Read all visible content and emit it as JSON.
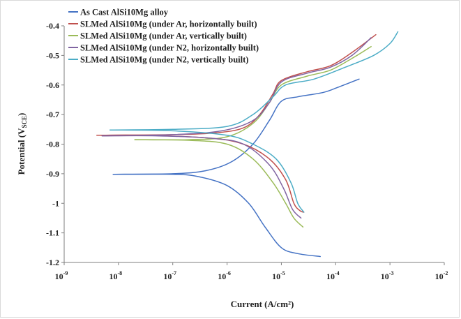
{
  "chart_data": {
    "type": "line",
    "title": "",
    "xlabel": "Current (A/cm²)",
    "ylabel": "Potential (VSCE)",
    "ylabel_main": "Potential (V",
    "ylabel_sub": "SCE",
    "ylabel_close": ")",
    "x_scale": "log",
    "xlim": [
      1e-09,
      0.01
    ],
    "ylim": [
      -1.2,
      -0.4
    ],
    "x_ticks": [
      {
        "base": "10",
        "exp": "-9",
        "value": 1e-09
      },
      {
        "base": "10",
        "exp": "-8",
        "value": 1e-08
      },
      {
        "base": "10",
        "exp": "-7",
        "value": 1e-07
      },
      {
        "base": "10",
        "exp": "-6",
        "value": 1e-06
      },
      {
        "base": "10",
        "exp": "-5",
        "value": 1e-05
      },
      {
        "base": "10",
        "exp": "-4",
        "value": 0.0001
      },
      {
        "base": "10",
        "exp": "-3",
        "value": 0.001
      },
      {
        "base": "10",
        "exp": "-2",
        "value": 0.01
      }
    ],
    "y_ticks": [
      {
        "label": "-0.4",
        "value": -0.4
      },
      {
        "label": "-0.5",
        "value": -0.5
      },
      {
        "label": "-0.6",
        "value": -0.6
      },
      {
        "label": "-0.7",
        "value": -0.7
      },
      {
        "label": "-0.8",
        "value": -0.8
      },
      {
        "label": "-0.9",
        "value": -0.9
      },
      {
        "label": "-1",
        "value": -1.0
      },
      {
        "label": "-1.1",
        "value": -1.1
      },
      {
        "label": "-1.2",
        "value": -1.2
      }
    ],
    "grid": false,
    "legend_position": "top-left",
    "series": [
      {
        "name": "As Cast AlSi10Mg alloy",
        "color": "#4472c4",
        "cathodic": [
          [
            8e-09,
            -0.902
          ],
          [
            1e-07,
            -0.902
          ],
          [
            3e-07,
            -0.91
          ],
          [
            1e-06,
            -0.94
          ],
          [
            2.5e-06,
            -1.0
          ],
          [
            5e-06,
            -1.08
          ],
          [
            1e-05,
            -1.15
          ],
          [
            2e-05,
            -1.17
          ],
          [
            5.2e-05,
            -1.18
          ]
        ],
        "anodic": [
          [
            8e-09,
            -0.902
          ],
          [
            1e-07,
            -0.9
          ],
          [
            4e-07,
            -0.89
          ],
          [
            1.2e-06,
            -0.86
          ],
          [
            3e-06,
            -0.8
          ],
          [
            6e-06,
            -0.72
          ],
          [
            1e-05,
            -0.655
          ],
          [
            2e-05,
            -0.64
          ],
          [
            6e-05,
            -0.625
          ],
          [
            0.00012,
            -0.605
          ],
          [
            0.00027,
            -0.58
          ]
        ]
      },
      {
        "name": "SLMed AlSi10Mg (under Ar, horizontally built)",
        "color": "#c0504d",
        "cathodic": [
          [
            4e-09,
            -0.77
          ],
          [
            3e-08,
            -0.77
          ],
          [
            5e-07,
            -0.78
          ],
          [
            2e-06,
            -0.8
          ],
          [
            6e-06,
            -0.85
          ],
          [
            1.2e-05,
            -0.92
          ],
          [
            1.7e-05,
            -1.0
          ],
          [
            2.2e-05,
            -1.025
          ],
          [
            2.6e-05,
            -1.03
          ]
        ],
        "anodic": [
          [
            4e-09,
            -0.77
          ],
          [
            1e-07,
            -0.768
          ],
          [
            6e-07,
            -0.762
          ],
          [
            2e-06,
            -0.745
          ],
          [
            4e-06,
            -0.7
          ],
          [
            7e-06,
            -0.63
          ],
          [
            1e-05,
            -0.585
          ],
          [
            3e-05,
            -0.555
          ],
          [
            8e-05,
            -0.535
          ],
          [
            0.0002,
            -0.49
          ],
          [
            0.00055,
            -0.43
          ]
        ]
      },
      {
        "name": "SLMed AlSi10Mg (under Ar, vertically built)",
        "color": "#9bbb59",
        "cathodic": [
          [
            2e-08,
            -0.785
          ],
          [
            2e-07,
            -0.787
          ],
          [
            1e-06,
            -0.8
          ],
          [
            3e-06,
            -0.85
          ],
          [
            7e-06,
            -0.93
          ],
          [
            1.2e-05,
            -1.0
          ],
          [
            1.7e-05,
            -1.05
          ],
          [
            2.5e-05,
            -1.08
          ]
        ],
        "anodic": [
          [
            2e-08,
            -0.785
          ],
          [
            2e-07,
            -0.785
          ],
          [
            1e-06,
            -0.775
          ],
          [
            3e-06,
            -0.73
          ],
          [
            6e-06,
            -0.66
          ],
          [
            1e-05,
            -0.6
          ],
          [
            3e-05,
            -0.57
          ],
          [
            8e-05,
            -0.55
          ],
          [
            0.0002,
            -0.51
          ],
          [
            0.00045,
            -0.47
          ]
        ]
      },
      {
        "name": "SLMed AlSi10Mg (under N2, horizontally built)",
        "color": "#8064a2",
        "cathodic": [
          [
            5e-09,
            -0.772
          ],
          [
            5e-08,
            -0.772
          ],
          [
            5e-07,
            -0.78
          ],
          [
            2e-06,
            -0.8
          ],
          [
            6e-06,
            -0.87
          ],
          [
            1.1e-05,
            -0.95
          ],
          [
            1.6e-05,
            -1.02
          ],
          [
            2.3e-05,
            -1.05
          ]
        ],
        "anodic": [
          [
            5e-09,
            -0.772
          ],
          [
            1e-07,
            -0.768
          ],
          [
            8e-07,
            -0.755
          ],
          [
            3e-06,
            -0.72
          ],
          [
            6e-06,
            -0.66
          ],
          [
            1e-05,
            -0.59
          ],
          [
            3e-05,
            -0.56
          ],
          [
            8e-05,
            -0.54
          ],
          [
            0.0002,
            -0.5
          ],
          [
            0.00045,
            -0.44
          ]
        ]
      },
      {
        "name": "SLMed AlSi10Mg (under N2, vertically built)",
        "color": "#4bacc6",
        "cathodic": [
          [
            7e-09,
            -0.752
          ],
          [
            1e-07,
            -0.755
          ],
          [
            1e-06,
            -0.77
          ],
          [
            3e-06,
            -0.8
          ],
          [
            8e-06,
            -0.85
          ],
          [
            1.5e-05,
            -0.93
          ],
          [
            2e-05,
            -1.0
          ],
          [
            2.6e-05,
            -1.03
          ]
        ],
        "anodic": [
          [
            7e-09,
            -0.752
          ],
          [
            1e-07,
            -0.75
          ],
          [
            1e-06,
            -0.74
          ],
          [
            3e-06,
            -0.7
          ],
          [
            7e-06,
            -0.64
          ],
          [
            1.2e-05,
            -0.6
          ],
          [
            4e-05,
            -0.58
          ],
          [
            0.00015,
            -0.54
          ],
          [
            0.0005,
            -0.5
          ],
          [
            0.001,
            -0.46
          ],
          [
            0.0014,
            -0.42
          ]
        ]
      }
    ]
  }
}
